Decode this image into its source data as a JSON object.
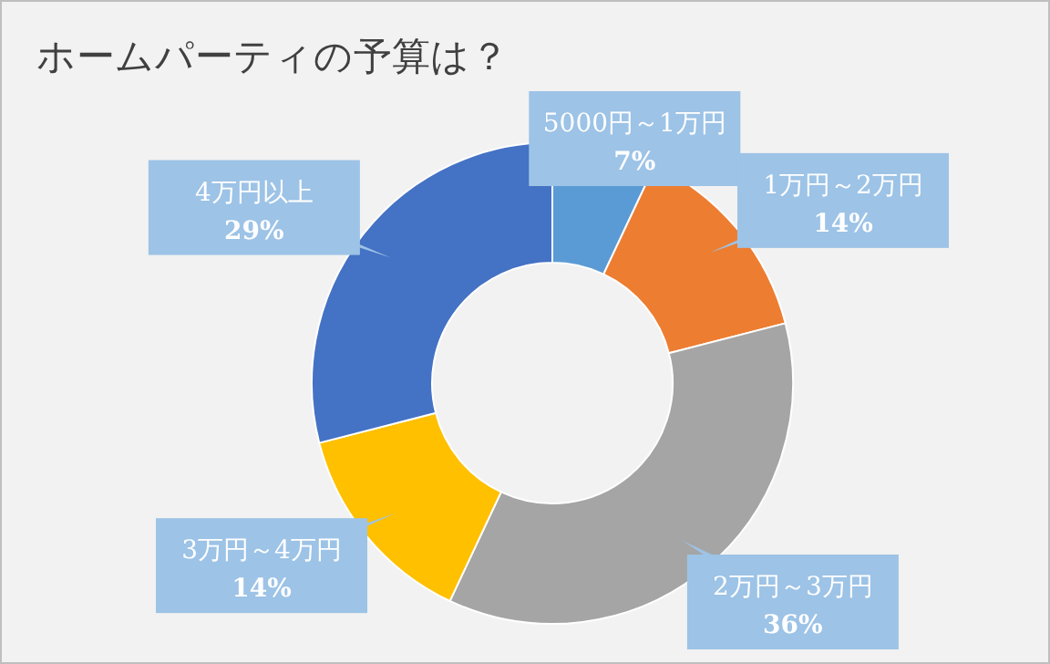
{
  "chart_data": {
    "type": "donut",
    "title": "ホームパーティの予算は？",
    "categories": [
      "5000円～1万円",
      "1万円～2万円",
      "2万円～3万円",
      "3万円～4万円",
      "4万円以上"
    ],
    "values": [
      7,
      14,
      36,
      14,
      29
    ],
    "value_labels": [
      "7%",
      "14%",
      "36%",
      "14%",
      "29%"
    ],
    "colors": [
      "#5b9bd5",
      "#ed7d31",
      "#a5a5a5",
      "#ffc000",
      "#4472c4"
    ]
  }
}
